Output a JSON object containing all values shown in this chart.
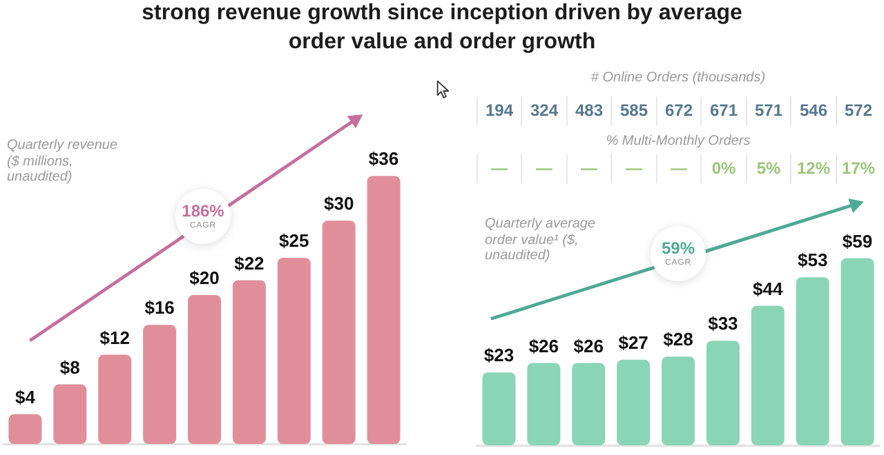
{
  "chart_data": [
    {
      "type": "bar",
      "title": "strong revenue growth since inception driven by average order value and order growth",
      "annotations": [
        "Quarterly revenue ($ millions, unaudited)",
        "186% CAGR"
      ],
      "categories": [
        null,
        null,
        null,
        null,
        null,
        null,
        null,
        null,
        null
      ],
      "values": [
        4,
        8,
        12,
        16,
        20,
        22,
        25,
        30,
        36
      ],
      "value_labels": [
        "$4",
        "$8",
        "$12",
        "$16",
        "$20",
        "$22",
        "$25",
        "$30",
        "$36"
      ],
      "color": "#e08f9a",
      "tick_labels": false
    },
    {
      "type": "other",
      "annotations": [
        "# Online Orders (thousands)",
        "194",
        "324",
        "483",
        "585",
        "672",
        "671",
        "571",
        "546",
        "572",
        "% Multi-Monthly Orders",
        "—",
        "—",
        "—",
        "—",
        "—",
        "0%",
        "5%",
        "12%",
        "17%"
      ]
    },
    {
      "type": "bar",
      "annotations": [
        "Quarterly average order value¹ ($, unaudited)",
        "59% CAGR"
      ],
      "categories": [
        null,
        null,
        null,
        null,
        null,
        null,
        null,
        null,
        null
      ],
      "values": [
        23,
        26,
        26,
        27,
        28,
        33,
        44,
        53,
        59
      ],
      "value_labels": [
        "$23",
        "$26",
        "$26",
        "$27",
        "$28",
        "$33",
        "$44",
        "$53",
        "$59"
      ],
      "color": "#8ad5b7",
      "tick_labels": false
    }
  ]
}
